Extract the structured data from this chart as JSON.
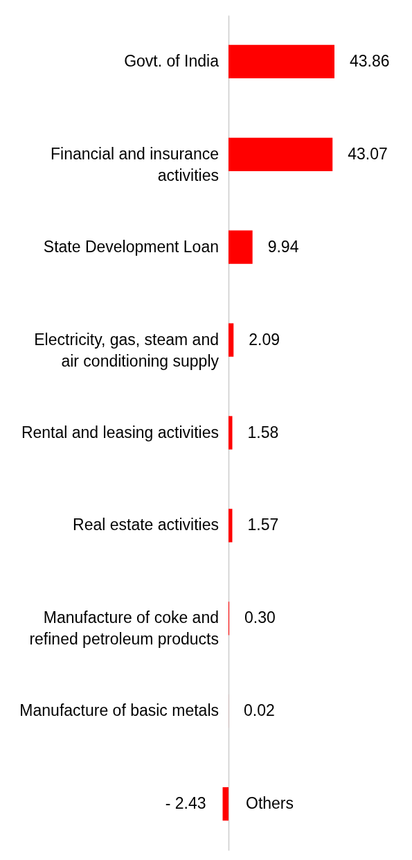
{
  "chart_data": {
    "type": "bar",
    "orientation": "horizontal",
    "categories": [
      "Govt. of India",
      "Financial and insurance activities",
      "State Development Loan",
      "Electricity, gas, steam and air conditioning supply",
      "Rental and leasing activities",
      "Real estate activities",
      "Manufacture of coke and refined petroleum products",
      "Manufacture of basic metals",
      "Others"
    ],
    "values": [
      43.86,
      43.07,
      9.94,
      2.09,
      1.58,
      1.57,
      0.3,
      0.02,
      -2.43
    ],
    "color": "#ff0000",
    "value_labels": [
      "43.86",
      "43.07",
      "9.94",
      "2.09",
      "1.58",
      "1.57",
      "0.30",
      "0.02",
      "- 2.43"
    ]
  }
}
